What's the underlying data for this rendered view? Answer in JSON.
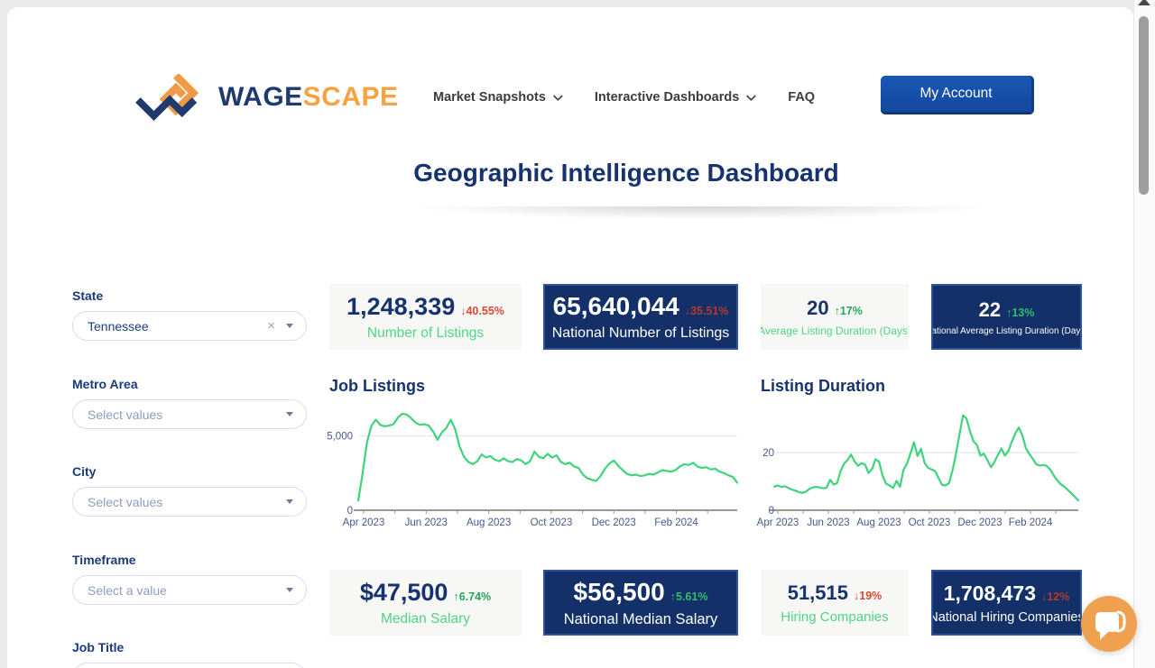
{
  "header": {
    "brand": {
      "name": "WAGESCAPE",
      "primary": "WAGE",
      "secondary": "SCAPE"
    },
    "nav": [
      {
        "label": "Market Snapshots",
        "dropdown": true
      },
      {
        "label": "Interactive Dashboards",
        "dropdown": true
      },
      {
        "label": "FAQ",
        "dropdown": false
      }
    ],
    "account_button": "My Account"
  },
  "page_title": "Geographic Intelligence Dashboard",
  "filters": [
    {
      "label": "State",
      "value": "Tennessee",
      "clearable": true
    },
    {
      "label": "Metro Area",
      "placeholder": "Select values"
    },
    {
      "label": "City",
      "placeholder": "Select values"
    },
    {
      "label": "Timeframe",
      "placeholder": "Select a value"
    },
    {
      "label": "Job Title",
      "placeholder": ""
    }
  ],
  "stats_top": [
    {
      "value": "1,248,339",
      "delta": "40.55%",
      "trend": "down",
      "label": "Number of Listings",
      "theme": "light"
    },
    {
      "value": "65,640,044",
      "delta": "35.51%",
      "trend": "down",
      "label": "National Number of Listings",
      "theme": "navy"
    },
    {
      "value": "20",
      "delta": "17%",
      "trend": "up",
      "label": "Average Listing Duration (Days)",
      "theme": "light"
    },
    {
      "value": "22",
      "delta": "13%",
      "trend": "up",
      "label": "National Average Listing Duration (Days)",
      "theme": "navy"
    }
  ],
  "stats_bottom": [
    {
      "value": "$47,500",
      "delta": "6.74%",
      "trend": "up",
      "label": "Median Salary",
      "theme": "light"
    },
    {
      "value": "$56,500",
      "delta": "5.61%",
      "trend": "up",
      "label": "National Median Salary",
      "theme": "navy"
    },
    {
      "value": "51,515",
      "delta": "19%",
      "trend": "down",
      "label": "Hiring Companies",
      "theme": "light"
    },
    {
      "value": "1,708,473",
      "delta": "12%",
      "trend": "down",
      "label": "National Hiring Companies",
      "theme": "navy"
    }
  ],
  "chart_data": [
    {
      "type": "line",
      "title": "Job Listings",
      "xlabel": "",
      "ylabel": "",
      "x_range": [
        "Apr 2023",
        "Mar 2024"
      ],
      "x_tick_labels": [
        "Apr 2023",
        "Jun 2023",
        "Aug 2023",
        "Oct 2023",
        "Dec 2023",
        "Feb 2024"
      ],
      "y_tick_labels": [
        "5,000",
        "0"
      ],
      "ylim": [
        0,
        6800
      ],
      "grid_value": 5000,
      "legend": false,
      "line_color": "#3fd37c",
      "series": [
        {
          "name": "Job Listings",
          "values": [
            650,
            2500,
            4600,
            5700,
            6100,
            5750,
            5650,
            5700,
            5800,
            6250,
            6500,
            6450,
            6200,
            5900,
            5750,
            5800,
            5700,
            5300,
            4750,
            5250,
            5550,
            6100,
            5450,
            4300,
            3600,
            3250,
            3100,
            3300,
            3750,
            3550,
            3650,
            3400,
            3300,
            3500,
            3300,
            3250,
            3450,
            3350,
            3100,
            3300,
            3950,
            3600,
            3500,
            3800,
            3550,
            3700,
            3250,
            3100,
            3200,
            2950,
            2850,
            2400,
            2150,
            2050,
            1980,
            2300,
            2800,
            3150,
            3350,
            3000,
            2700,
            2450,
            2350,
            2400,
            2300,
            2350,
            2450,
            2400,
            2550,
            2700,
            2650,
            2600,
            2700,
            2950,
            3100,
            3050,
            3200,
            2950,
            2850,
            2900,
            2750,
            2800,
            2600,
            2500,
            2350,
            2250,
            1850
          ]
        }
      ]
    },
    {
      "type": "line",
      "title": "Listing Duration",
      "xlabel": "",
      "ylabel": "",
      "x_range": [
        "Apr 2023",
        "Mar 2024"
      ],
      "x_tick_labels": [
        "Apr 2023",
        "Jun 2023",
        "Aug 2023",
        "Oct 2023",
        "Dec 2023",
        "Feb 2024"
      ],
      "y_tick_labels": [
        "20",
        "0"
      ],
      "ylim": [
        0,
        35
      ],
      "grid_value": 20,
      "legend": false,
      "line_color": "#3fd37c",
      "series": [
        {
          "name": "Listing Duration (Days)",
          "values": [
            8.2,
            8.6,
            8.1,
            8.3,
            7.8,
            7.2,
            6.8,
            6.3,
            6.0,
            6.4,
            7.3,
            7.9,
            8.1,
            7.9,
            7.6,
            7.8,
            10.6,
            8.9,
            9.4,
            13.6,
            16.2,
            17.4,
            19.3,
            16.9,
            15.4,
            16.3,
            15.8,
            12.9,
            14.3,
            17.7,
            16.8,
            12.0,
            9.2,
            8.6,
            7.7,
            10.2,
            8.1,
            14.0,
            16.2,
            19.8,
            23.6,
            18.8,
            21.3,
            16.5,
            14.7,
            14.2,
            13.6,
            11.2,
            8.8,
            8.6,
            9.4,
            13.8,
            19.5,
            26.2,
            32.9,
            31.8,
            27.5,
            23.9,
            22.6,
            18.9,
            19.6,
            17.4,
            14.9,
            16.7,
            19.2,
            21.4,
            18.9,
            20.5,
            23.8,
            26.7,
            28.7,
            26.0,
            21.5,
            19.4,
            17.8,
            15.9,
            15.5,
            15.7,
            15.3,
            14.1,
            12.0,
            10.3,
            9.0,
            8.2,
            7.0,
            5.9,
            4.7,
            3.4
          ]
        }
      ]
    }
  ],
  "colors": {
    "navy": "#17336f",
    "navy_card": "#133069",
    "green_label": "#4fd584",
    "delta_up": "#2aa35c",
    "delta_down": "#d94a33",
    "delta_up_navy": "#2fbe6d",
    "delta_down_navy": "#b43a2c",
    "line_green": "#3fd37c",
    "accent_orange": "#f5a243",
    "button_blue": "#1551af",
    "chat_orange": "#efa14f"
  },
  "chat_widget": {
    "present": true
  }
}
